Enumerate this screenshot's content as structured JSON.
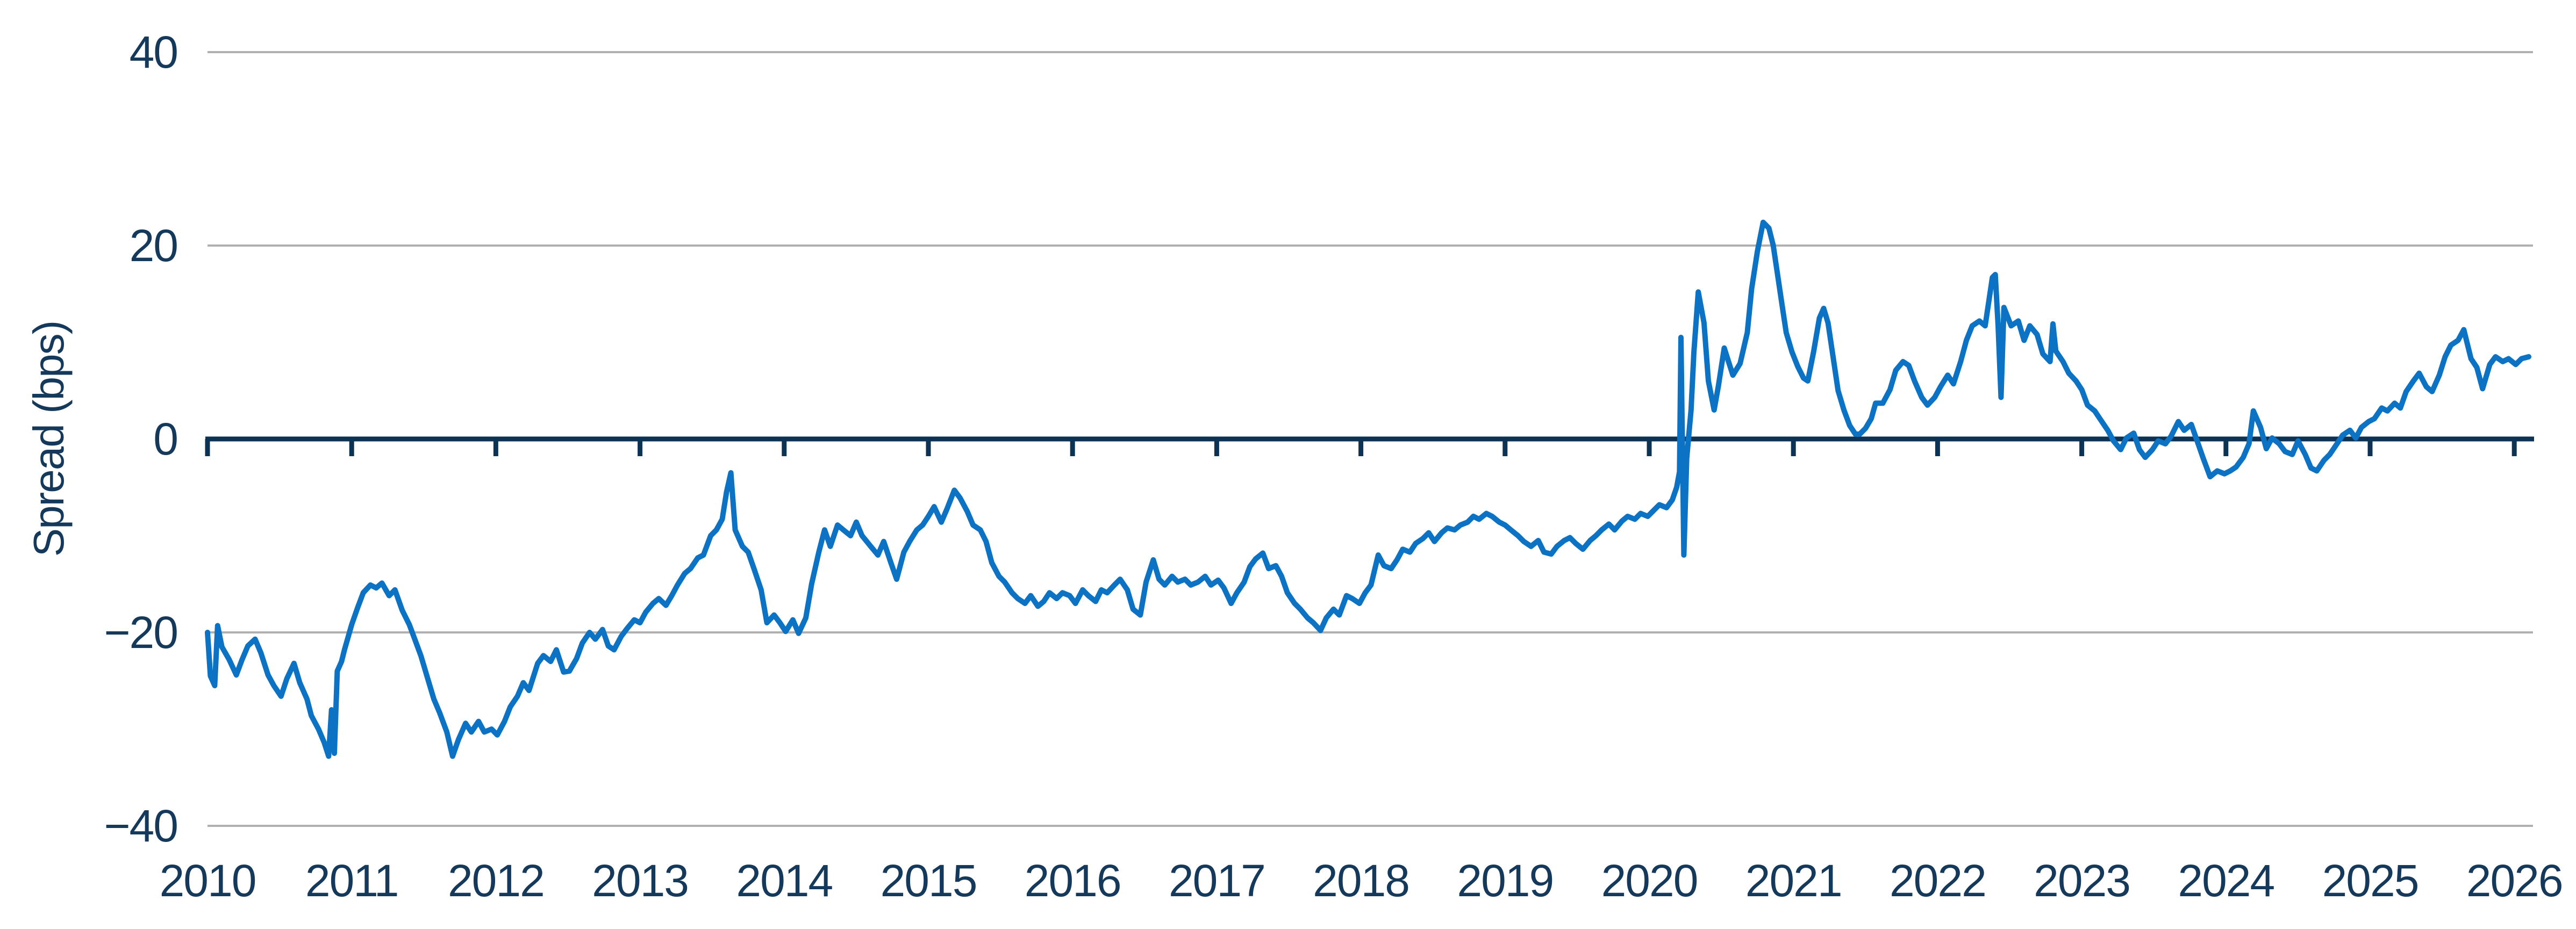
{
  "style": {
    "background": "#ffffff",
    "grid_color": "#b0b0b0",
    "axis_color": "#0d3354",
    "text_color": "#15395b",
    "line_color": "#0c72c4"
  },
  "chart_data": {
    "type": "line",
    "title": "",
    "xlabel": "",
    "ylabel": "Spread (bps)",
    "grid": "horizontal",
    "legend_position": "none",
    "ylim": [
      -40,
      40
    ],
    "x_range": [
      2010,
      2026.13
    ],
    "y_axis": {
      "ticks": [
        {
          "label": "40",
          "value": 40
        },
        {
          "label": "20",
          "value": 20
        },
        {
          "label": "0",
          "value": 0
        },
        {
          "label": "−20",
          "value": -20
        },
        {
          "label": "−40",
          "value": -40
        }
      ],
      "zero_axis": true
    },
    "x_axis": {
      "ticks": [
        {
          "label": "2010",
          "value": 2010
        },
        {
          "label": "2011",
          "value": 2011
        },
        {
          "label": "2012",
          "value": 2012
        },
        {
          "label": "2013",
          "value": 2013
        },
        {
          "label": "2014",
          "value": 2014
        },
        {
          "label": "2015",
          "value": 2015
        },
        {
          "label": "2016",
          "value": 2016
        },
        {
          "label": "2017",
          "value": 2017
        },
        {
          "label": "2018",
          "value": 2018
        },
        {
          "label": "2019",
          "value": 2019
        },
        {
          "label": "2020",
          "value": 2020
        },
        {
          "label": "2021",
          "value": 2021
        },
        {
          "label": "2022",
          "value": 2022
        },
        {
          "label": "2023",
          "value": 2023
        },
        {
          "label": "2024",
          "value": 2024
        },
        {
          "label": "2025",
          "value": 2025
        },
        {
          "label": "2026",
          "value": 2026
        }
      ]
    },
    "series": [
      {
        "name": "Spread (bps)",
        "color": "#0c72c4",
        "x": [
          2010.0,
          2010.02,
          2010.05,
          2010.07,
          2010.1,
          2010.15,
          2010.2,
          2010.24,
          2010.28,
          2010.33,
          2010.37,
          2010.42,
          2010.46,
          2010.51,
          2010.55,
          2010.6,
          2010.64,
          2010.69,
          2010.72,
          2010.77,
          2010.81,
          2010.84,
          2010.86,
          2010.88,
          2010.9,
          2010.93,
          2010.95,
          2011.0,
          2011.04,
          2011.08,
          2011.13,
          2011.17,
          2011.21,
          2011.26,
          2011.3,
          2011.35,
          2011.4,
          2011.44,
          2011.48,
          2011.53,
          2011.57,
          2011.61,
          2011.66,
          2011.7,
          2011.74,
          2011.79,
          2011.83,
          2011.88,
          2011.92,
          2011.97,
          2012.01,
          2012.06,
          2012.1,
          2012.15,
          2012.19,
          2012.23,
          2012.29,
          2012.33,
          2012.38,
          2012.42,
          2012.47,
          2012.51,
          2012.56,
          2012.6,
          2012.65,
          2012.69,
          2012.74,
          2012.78,
          2012.82,
          2012.87,
          2012.91,
          2012.96,
          2013.0,
          2013.04,
          2013.09,
          2013.13,
          2013.18,
          2013.22,
          2013.26,
          2013.31,
          2013.35,
          2013.4,
          2013.44,
          2013.49,
          2013.53,
          2013.57,
          2013.6,
          2013.63,
          2013.66,
          2013.71,
          2013.75,
          2013.79,
          2013.84,
          2013.88,
          2013.93,
          2013.97,
          2014.01,
          2014.06,
          2014.1,
          2014.15,
          2014.19,
          2014.24,
          2014.28,
          2014.32,
          2014.37,
          2014.41,
          2014.46,
          2014.5,
          2014.54,
          2014.6,
          2014.65,
          2014.69,
          2014.74,
          2014.78,
          2014.83,
          2014.87,
          2014.92,
          2014.96,
          2015.0,
          2015.04,
          2015.09,
          2015.13,
          2015.18,
          2015.22,
          2015.27,
          2015.31,
          2015.36,
          2015.4,
          2015.44,
          2015.49,
          2015.53,
          2015.58,
          2015.62,
          2015.67,
          2015.71,
          2015.76,
          2015.8,
          2015.84,
          2015.89,
          2015.93,
          2015.98,
          2016.02,
          2016.07,
          2016.11,
          2016.16,
          2016.2,
          2016.24,
          2016.29,
          2016.33,
          2016.38,
          2016.42,
          2016.47,
          2016.51,
          2016.56,
          2016.6,
          2016.64,
          2016.69,
          2016.73,
          2016.78,
          2016.82,
          2016.87,
          2016.92,
          2016.96,
          2017.01,
          2017.05,
          2017.1,
          2017.14,
          2017.19,
          2017.23,
          2017.27,
          2017.32,
          2017.36,
          2017.41,
          2017.45,
          2017.49,
          2017.54,
          2017.58,
          2017.63,
          2017.67,
          2017.72,
          2017.76,
          2017.81,
          2017.85,
          2017.9,
          2017.94,
          2017.99,
          2018.03,
          2018.07,
          2018.12,
          2018.16,
          2018.21,
          2018.25,
          2018.29,
          2018.34,
          2018.38,
          2018.43,
          2018.47,
          2018.51,
          2018.56,
          2018.6,
          2018.65,
          2018.69,
          2018.74,
          2018.78,
          2018.82,
          2018.87,
          2018.91,
          2018.96,
          2019.0,
          2019.04,
          2019.09,
          2019.13,
          2019.18,
          2019.23,
          2019.27,
          2019.32,
          2019.36,
          2019.41,
          2019.45,
          2019.49,
          2019.54,
          2019.59,
          2019.63,
          2019.67,
          2019.72,
          2019.76,
          2019.81,
          2019.85,
          2019.9,
          2019.94,
          2019.99,
          2020.03,
          2020.07,
          2020.12,
          2020.16,
          2020.19,
          2020.21,
          2020.22,
          2020.24,
          2020.26,
          2020.29,
          2020.31,
          2020.34,
          2020.38,
          2020.41,
          2020.45,
          2020.48,
          2020.52,
          2020.55,
          2020.58,
          2020.63,
          2020.68,
          2020.71,
          2020.75,
          2020.79,
          2020.83,
          2020.86,
          2020.89,
          2020.92,
          2020.95,
          2020.99,
          2021.03,
          2021.07,
          2021.1,
          2021.14,
          2021.18,
          2021.21,
          2021.24,
          2021.28,
          2021.31,
          2021.35,
          2021.39,
          2021.43,
          2021.46,
          2021.5,
          2021.54,
          2021.57,
          2021.62,
          2021.67,
          2021.71,
          2021.76,
          2021.8,
          2021.84,
          2021.89,
          2021.93,
          2021.98,
          2022.02,
          2022.07,
          2022.11,
          2022.16,
          2022.2,
          2022.24,
          2022.29,
          2022.33,
          2022.38,
          2022.4,
          2022.42,
          2022.44,
          2022.46,
          2022.51,
          2022.56,
          2022.6,
          2022.64,
          2022.69,
          2022.73,
          2022.78,
          2022.8,
          2022.82,
          2022.87,
          2022.91,
          2022.96,
          2023.0,
          2023.04,
          2023.09,
          2023.13,
          2023.18,
          2023.22,
          2023.27,
          2023.31,
          2023.36,
          2023.4,
          2023.44,
          2023.49,
          2023.53,
          2023.58,
          2023.62,
          2023.67,
          2023.71,
          2023.76,
          2023.8,
          2023.84,
          2023.89,
          2023.94,
          2023.99,
          2024.03,
          2024.07,
          2024.12,
          2024.16,
          2024.19,
          2024.24,
          2024.28,
          2024.32,
          2024.37,
          2024.41,
          2024.46,
          2024.5,
          2024.55,
          2024.59,
          2024.63,
          2024.68,
          2024.72,
          2024.77,
          2024.81,
          2024.86,
          2024.9,
          2024.94,
          2024.99,
          2025.03,
          2025.08,
          2025.12,
          2025.17,
          2025.21,
          2025.25,
          2025.3,
          2025.34,
          2025.39,
          2025.43,
          2025.48,
          2025.52,
          2025.56,
          2025.61,
          2025.65,
          2025.7,
          2025.74,
          2025.78,
          2025.83,
          2025.87,
          2025.92,
          2025.96,
          2026.01,
          2026.05,
          2026.1
        ],
        "y": [
          -20.0,
          -24.5,
          -25.5,
          -19.3,
          -21.5,
          -22.8,
          -24.4,
          -22.8,
          -21.4,
          -20.7,
          -22.1,
          -24.4,
          -25.5,
          -26.6,
          -24.8,
          -23.2,
          -25.2,
          -26.9,
          -28.6,
          -30.0,
          -31.4,
          -32.8,
          -28.0,
          -32.5,
          -24.0,
          -23.0,
          -21.8,
          -19.2,
          -17.5,
          -15.9,
          -15.1,
          -15.4,
          -14.9,
          -16.2,
          -15.6,
          -17.7,
          -19.2,
          -20.8,
          -22.4,
          -24.9,
          -26.9,
          -28.3,
          -30.3,
          -32.8,
          -31.1,
          -29.4,
          -30.3,
          -29.2,
          -30.3,
          -30.0,
          -30.6,
          -29.2,
          -27.7,
          -26.6,
          -25.2,
          -26.0,
          -23.2,
          -22.4,
          -23.0,
          -21.8,
          -24.1,
          -24.0,
          -22.7,
          -21.1,
          -20.0,
          -20.7,
          -19.7,
          -21.4,
          -21.8,
          -20.4,
          -19.6,
          -18.7,
          -19.0,
          -17.9,
          -17.0,
          -16.5,
          -17.2,
          -16.2,
          -15.1,
          -13.9,
          -13.4,
          -12.3,
          -12.0,
          -10.0,
          -9.4,
          -8.3,
          -5.5,
          -3.5,
          -9.4,
          -11.1,
          -11.7,
          -13.4,
          -15.6,
          -19.0,
          -18.2,
          -19.0,
          -19.9,
          -18.7,
          -20.1,
          -18.5,
          -15.0,
          -11.7,
          -9.4,
          -11.1,
          -8.9,
          -9.4,
          -10.0,
          -8.6,
          -10.0,
          -11.1,
          -12.0,
          -10.6,
          -12.8,
          -14.5,
          -11.7,
          -10.6,
          -9.4,
          -8.9,
          -8.0,
          -7.0,
          -8.6,
          -7.2,
          -5.3,
          -6.1,
          -7.5,
          -8.9,
          -9.4,
          -10.6,
          -12.8,
          -14.2,
          -14.8,
          -15.9,
          -16.5,
          -17.0,
          -16.2,
          -17.3,
          -16.8,
          -15.9,
          -16.5,
          -15.9,
          -16.2,
          -17.0,
          -15.6,
          -16.2,
          -16.8,
          -15.6,
          -15.9,
          -15.1,
          -14.5,
          -15.6,
          -17.6,
          -18.2,
          -14.8,
          -12.5,
          -14.5,
          -15.1,
          -14.2,
          -14.8,
          -14.5,
          -15.1,
          -14.8,
          -14.2,
          -15.1,
          -14.6,
          -15.4,
          -17.0,
          -15.9,
          -14.8,
          -13.2,
          -12.4,
          -11.8,
          -13.4,
          -13.1,
          -14.2,
          -15.9,
          -17.0,
          -17.6,
          -18.5,
          -19.0,
          -19.8,
          -18.5,
          -17.6,
          -18.2,
          -16.2,
          -16.5,
          -17.0,
          -15.9,
          -15.1,
          -12.0,
          -13.1,
          -13.4,
          -12.5,
          -11.4,
          -11.7,
          -10.8,
          -10.3,
          -9.7,
          -10.6,
          -9.7,
          -9.2,
          -9.4,
          -8.9,
          -8.6,
          -8.0,
          -8.3,
          -7.7,
          -8.0,
          -8.6,
          -8.9,
          -9.4,
          -10.0,
          -10.6,
          -11.1,
          -10.5,
          -11.7,
          -11.9,
          -11.1,
          -10.5,
          -10.2,
          -10.8,
          -11.4,
          -10.5,
          -10.0,
          -9.4,
          -8.8,
          -9.4,
          -8.5,
          -8.0,
          -8.3,
          -7.7,
          -8.0,
          -7.4,
          -6.8,
          -7.1,
          -6.3,
          -5.0,
          -3.4,
          10.5,
          -12.0,
          -2.0,
          3.0,
          9.0,
          15.2,
          12.0,
          6.0,
          3.0,
          5.5,
          9.4,
          8.0,
          6.6,
          7.8,
          11.0,
          15.5,
          19.4,
          22.4,
          21.8,
          20.0,
          17.0,
          14.0,
          11.0,
          9.0,
          7.5,
          6.3,
          6.0,
          9.0,
          12.5,
          13.5,
          12.0,
          8.0,
          5.0,
          3.0,
          1.4,
          0.5,
          0.5,
          1.1,
          2.1,
          3.7,
          3.7,
          5.1,
          7.1,
          8.0,
          7.6,
          6.0,
          4.3,
          3.5,
          4.3,
          5.4,
          6.6,
          5.7,
          8.0,
          10.2,
          11.7,
          12.2,
          11.7,
          16.7,
          17.0,
          11.7,
          4.3,
          13.6,
          11.7,
          12.2,
          10.2,
          11.7,
          10.8,
          8.8,
          8.0,
          11.9,
          9.1,
          8.0,
          6.8,
          6.0,
          5.1,
          3.5,
          2.9,
          2.0,
          0.9,
          -0.2,
          -1.1,
          0.1,
          0.6,
          -1.1,
          -1.9,
          -1.1,
          -0.2,
          -0.5,
          0.3,
          1.8,
          0.9,
          1.5,
          -0.2,
          -1.9,
          -3.9,
          -3.3,
          -3.6,
          -3.3,
          -2.9,
          -1.9,
          -0.5,
          2.9,
          1.2,
          -1.0,
          0.1,
          -0.5,
          -1.3,
          -1.6,
          -0.2,
          -1.6,
          -3.0,
          -3.3,
          -2.2,
          -1.6,
          -0.5,
          0.4,
          0.9,
          0.1,
          1.2,
          1.8,
          2.1,
          3.2,
          2.9,
          3.7,
          3.2,
          4.9,
          6.0,
          6.8,
          5.4,
          4.9,
          6.6,
          8.5,
          9.7,
          10.2,
          11.3,
          8.3,
          7.4,
          5.2,
          7.7,
          8.5,
          8.0,
          8.3,
          7.7,
          8.3,
          8.5
        ]
      }
    ]
  }
}
